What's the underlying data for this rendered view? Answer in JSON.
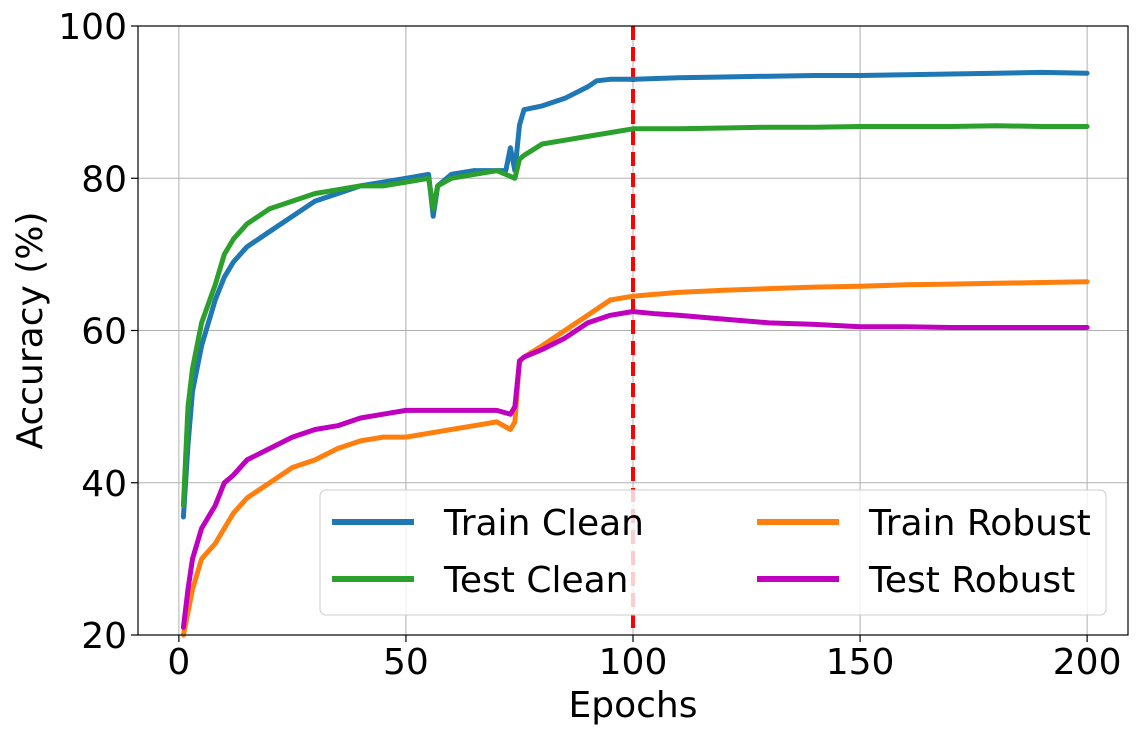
{
  "chart_data": {
    "type": "line",
    "title": "",
    "xlabel": "Epochs",
    "ylabel": "Accuracy (%)",
    "xlim": [
      -9,
      209
    ],
    "ylim": [
      20,
      100
    ],
    "xticks": [
      0,
      50,
      100,
      150,
      200
    ],
    "yticks": [
      20,
      40,
      60,
      80,
      100
    ],
    "xtick_labels": [
      "0",
      "50",
      "100",
      "150",
      "200"
    ],
    "ytick_labels": [
      "20",
      "40",
      "60",
      "80",
      "100"
    ],
    "grid": true,
    "legend": {
      "placement": "lower-right",
      "columns": 2
    },
    "vline": {
      "x": 100,
      "color": "#ff0000",
      "style": "dashed"
    },
    "series": [
      {
        "name": "Train Clean",
        "color": "#1f77b4",
        "x": [
          1,
          2,
          3,
          5,
          8,
          10,
          12,
          15,
          20,
          25,
          30,
          35,
          40,
          45,
          50,
          55,
          56,
          57,
          60,
          65,
          70,
          72,
          73,
          74,
          75,
          76,
          80,
          85,
          90,
          92,
          95,
          100,
          110,
          120,
          130,
          140,
          150,
          160,
          170,
          180,
          190,
          200
        ],
        "y": [
          35.5,
          45,
          52,
          58,
          64,
          67,
          69,
          71,
          73,
          75,
          77,
          78,
          79,
          79.5,
          80,
          80.5,
          75,
          79,
          80.5,
          81,
          81,
          81,
          84,
          81,
          87,
          89,
          89.5,
          90.5,
          92,
          92.8,
          93,
          93,
          93.2,
          93.3,
          93.4,
          93.5,
          93.5,
          93.6,
          93.7,
          93.8,
          93.9,
          93.8
        ]
      },
      {
        "name": "Train Robust",
        "color": "#ff7f0e",
        "x": [
          1,
          2,
          3,
          5,
          8,
          10,
          12,
          15,
          20,
          25,
          30,
          35,
          40,
          45,
          50,
          55,
          60,
          65,
          70,
          73,
          74,
          75,
          76,
          80,
          85,
          90,
          95,
          100,
          110,
          120,
          130,
          140,
          150,
          160,
          170,
          180,
          190,
          200
        ],
        "y": [
          20,
          23,
          26,
          30,
          32,
          34,
          36,
          38,
          40,
          42,
          43,
          44.5,
          45.5,
          46,
          46,
          46.5,
          47,
          47.5,
          48,
          47,
          48,
          56,
          56.5,
          58,
          60,
          62,
          64,
          64.5,
          65,
          65.3,
          65.5,
          65.7,
          65.8,
          66,
          66.1,
          66.2,
          66.3,
          66.4
        ]
      },
      {
        "name": "Test Clean",
        "color": "#2ca02c",
        "x": [
          1,
          2,
          3,
          5,
          8,
          10,
          12,
          15,
          20,
          25,
          30,
          35,
          40,
          45,
          50,
          55,
          56,
          57,
          60,
          65,
          70,
          74,
          75,
          76,
          80,
          85,
          90,
          95,
          100,
          110,
          120,
          130,
          140,
          150,
          160,
          170,
          180,
          190,
          200
        ],
        "y": [
          37,
          50,
          55,
          61,
          66,
          70,
          72,
          74,
          76,
          77,
          78,
          78.5,
          79,
          79,
          79.5,
          80,
          76,
          79,
          80,
          80.5,
          81,
          80,
          82.5,
          83,
          84.5,
          85,
          85.5,
          86,
          86.5,
          86.5,
          86.6,
          86.7,
          86.7,
          86.8,
          86.8,
          86.8,
          86.9,
          86.8,
          86.8
        ]
      },
      {
        "name": "Test Robust",
        "color": "#bf00bf",
        "x": [
          1,
          2,
          3,
          5,
          8,
          10,
          12,
          15,
          20,
          25,
          30,
          35,
          40,
          45,
          50,
          55,
          60,
          65,
          70,
          73,
          74,
          75,
          76,
          80,
          85,
          90,
          95,
          100,
          105,
          110,
          120,
          130,
          140,
          150,
          160,
          170,
          180,
          190,
          200
        ],
        "y": [
          21,
          26,
          30,
          34,
          37,
          40,
          41,
          43,
          44.5,
          46,
          47,
          47.5,
          48.5,
          49,
          49.5,
          49.5,
          49.5,
          49.5,
          49.5,
          49,
          50,
          56,
          56.5,
          57.5,
          59,
          61,
          62,
          62.5,
          62.2,
          62,
          61.5,
          61,
          60.8,
          60.5,
          60.5,
          60.4,
          60.4,
          60.4,
          60.4
        ]
      }
    ]
  }
}
